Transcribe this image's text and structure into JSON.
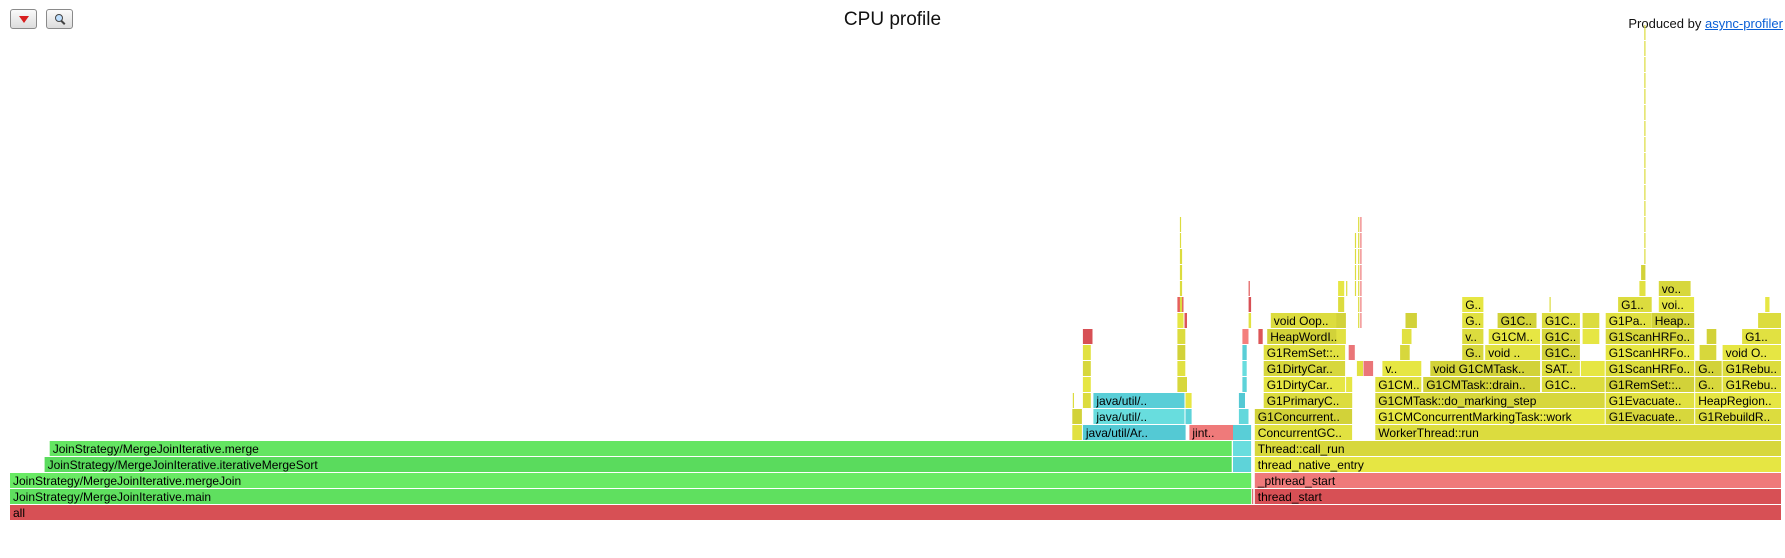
{
  "header": {
    "title": "CPU profile",
    "produced_prefix": "Produced by ",
    "produced_link": "async-profiler"
  },
  "toolbar": {
    "reverse_icon": "triangle-down-icon",
    "search_icon": "magnifier-icon"
  },
  "palette": {
    "red": "#e15a5a",
    "green": "#5fe05f",
    "yellow": "#dcdc3e",
    "cyan": "#5ed3d9",
    "pink": "#ef7a7a"
  },
  "frames": [
    {
      "name": "all",
      "label": "all",
      "depth": 0,
      "x": 0.0,
      "w": 1.0,
      "c": "red"
    },
    {
      "name": "JoinStrategy/MergeJoinIterative.main",
      "label": "JoinStrategy/MergeJoinIterative.main",
      "depth": 1,
      "x": 0.0,
      "w": 0.701,
      "c": "green"
    },
    {
      "name": "JoinStrategy/MergeJoinIterative.mergeJoin",
      "label": "JoinStrategy/MergeJoinIterative.mergeJoin",
      "depth": 2,
      "x": 0.0,
      "w": 0.701,
      "c": "green"
    },
    {
      "name": "JoinStrategy/MergeJoinIterative.iterativeMergeSort",
      "label": "JoinStrategy/MergeJoinIterative.iterativeMergeSort",
      "depth": 3,
      "x": 0.0195,
      "w": 0.6705,
      "c": "green"
    },
    {
      "name": "JoinStrategy/MergeJoinIterative.merge",
      "label": "JoinStrategy/MergeJoinIterative.merge",
      "depth": 4,
      "x": 0.0224,
      "w": 0.6676,
      "c": "green"
    },
    {
      "name": "java/util/Ar..",
      "label": "java/util/Ar..",
      "depth": 5,
      "x": 0.6055,
      "w": 0.0585,
      "c": "cyan"
    },
    {
      "name": "jint..",
      "label": "jint..",
      "depth": 5,
      "x": 0.6656,
      "w": 0.0264,
      "c": "pink"
    },
    {
      "name": "java/util/..",
      "label": "java/util/..",
      "depth": 6,
      "x": 0.6114,
      "w": 0.052,
      "c": "cyan"
    },
    {
      "name": "java/util/..",
      "label": "java/util/..",
      "depth": 7,
      "x": 0.6114,
      "w": 0.052,
      "c": "cyan"
    },
    {
      "name": "",
      "label": "",
      "depth": 5,
      "x": 0.5995,
      "w": 0.006,
      "c": "yellow"
    },
    {
      "name": "",
      "label": "",
      "depth": 6,
      "x": 0.5995,
      "w": 0.006,
      "c": "yellow"
    },
    {
      "name": "",
      "label": "",
      "depth": 7,
      "x": 0.6055,
      "w": 0.005,
      "c": "yellow"
    },
    {
      "name": "",
      "label": "",
      "depth": 8,
      "x": 0.6055,
      "w": 0.005,
      "c": "yellow"
    },
    {
      "name": "",
      "label": "",
      "depth": 9,
      "x": 0.6055,
      "w": 0.005,
      "c": "yellow"
    },
    {
      "name": "",
      "label": "",
      "depth": 10,
      "x": 0.6055,
      "w": 0.005,
      "c": "yellow"
    },
    {
      "name": "",
      "label": "",
      "depth": 11,
      "x": 0.6055,
      "w": 0.006,
      "c": "red"
    },
    {
      "name": "",
      "label": "",
      "depth": 6,
      "x": 0.6634,
      "w": 0.004,
      "c": "cyan"
    },
    {
      "name": "",
      "label": "",
      "depth": 7,
      "x": 0.6634,
      "w": 0.004,
      "c": "yellow"
    },
    {
      "name": "",
      "label": "",
      "depth": 8,
      "x": 0.6588,
      "w": 0.006,
      "c": "yellow"
    },
    {
      "name": "",
      "label": "",
      "depth": 9,
      "x": 0.6588,
      "w": 0.005,
      "c": "yellow"
    },
    {
      "name": "",
      "label": "",
      "depth": 10,
      "x": 0.6588,
      "w": 0.005,
      "c": "yellow"
    },
    {
      "name": "",
      "label": "",
      "depth": 11,
      "x": 0.6588,
      "w": 0.005,
      "c": "yellow"
    },
    {
      "name": "",
      "label": "",
      "depth": 12,
      "x": 0.6588,
      "w": 0.004,
      "c": "yellow"
    },
    {
      "name": "",
      "label": "",
      "depth": 12,
      "x": 0.6628,
      "w": 0.002,
      "c": "red"
    },
    {
      "name": "",
      "label": "",
      "depth": 13,
      "x": 0.6588,
      "w": 0.004,
      "c": "red"
    },
    {
      "name": "",
      "label": "",
      "depth": 1,
      "x": 0.701,
      "w": 0.0,
      "c": "red"
    },
    {
      "name": "",
      "label": "",
      "depth": 3,
      "x": 0.6902,
      "w": 0.0108,
      "c": "cyan"
    },
    {
      "name": "",
      "label": "",
      "depth": 4,
      "x": 0.6902,
      "w": 0.0108,
      "c": "cyan"
    },
    {
      "name": "",
      "label": "",
      "depth": 5,
      "x": 0.6902,
      "w": 0.0108,
      "c": "cyan"
    },
    {
      "name": "",
      "label": "",
      "depth": 6,
      "x": 0.6935,
      "w": 0.006,
      "c": "cyan"
    },
    {
      "name": "",
      "label": "",
      "depth": 7,
      "x": 0.6935,
      "w": 0.004,
      "c": "cyan"
    },
    {
      "name": "",
      "label": "",
      "depth": 8,
      "x": 0.6955,
      "w": 0.003,
      "c": "cyan"
    },
    {
      "name": "",
      "label": "",
      "depth": 9,
      "x": 0.6955,
      "w": 0.003,
      "c": "cyan"
    },
    {
      "name": "",
      "label": "",
      "depth": 10,
      "x": 0.6955,
      "w": 0.003,
      "c": "cyan"
    },
    {
      "name": "",
      "label": "",
      "depth": 11,
      "x": 0.6955,
      "w": 0.004,
      "c": "pink"
    },
    {
      "name": "thread_start",
      "label": "thread_start",
      "depth": 1,
      "x": 0.7025,
      "w": 0.2975,
      "c": "red"
    },
    {
      "name": "_pthread_start",
      "label": "_pthread_start",
      "depth": 2,
      "x": 0.7025,
      "w": 0.2975,
      "c": "pink"
    },
    {
      "name": "thread_native_entry",
      "label": "thread_native_entry",
      "depth": 3,
      "x": 0.7025,
      "w": 0.2975,
      "c": "yellow"
    },
    {
      "name": "Thread::call_run",
      "label": "Thread::call_run",
      "depth": 4,
      "x": 0.7025,
      "w": 0.2975,
      "c": "yellow"
    },
    {
      "name": "ConcurrentGC..",
      "label": "ConcurrentGC..",
      "depth": 5,
      "x": 0.7025,
      "w": 0.0555,
      "c": "yellow"
    },
    {
      "name": "G1Concurrent..",
      "label": "G1Concurrent..",
      "depth": 6,
      "x": 0.7025,
      "w": 0.0555,
      "c": "yellow"
    },
    {
      "name": "G1PrimaryC..",
      "label": "G1PrimaryC..",
      "depth": 7,
      "x": 0.7075,
      "w": 0.0505,
      "c": "yellow"
    },
    {
      "name": "G1DirtyCar..",
      "label": "G1DirtyCar..",
      "depth": 8,
      "x": 0.7075,
      "w": 0.0465,
      "c": "yellow"
    },
    {
      "name": "G1DirtyCar..",
      "label": "G1DirtyCar..",
      "depth": 9,
      "x": 0.7075,
      "w": 0.0465,
      "c": "yellow"
    },
    {
      "name": "G1RemSet::..",
      "label": "G1RemSet::..",
      "depth": 10,
      "x": 0.7075,
      "w": 0.0465,
      "c": "yellow"
    },
    {
      "name": "HeapWordI..",
      "label": "HeapWordI..",
      "depth": 11,
      "x": 0.7095,
      "w": 0.0445,
      "c": "yellow"
    },
    {
      "name": "void Oop..",
      "label": "void Oop..",
      "depth": 12,
      "x": 0.7115,
      "w": 0.0425,
      "c": "yellow"
    },
    {
      "name": "",
      "label": "",
      "depth": 8,
      "x": 0.754,
      "w": 0.004,
      "c": "yellow"
    },
    {
      "name": "",
      "label": "",
      "depth": 10,
      "x": 0.7555,
      "w": 0.004,
      "c": "pink"
    },
    {
      "name": "",
      "label": "",
      "depth": 11,
      "x": 0.7485,
      "w": 0.006,
      "c": "yellow"
    },
    {
      "name": "",
      "label": "",
      "depth": 12,
      "x": 0.7485,
      "w": 0.006,
      "c": "yellow"
    },
    {
      "name": "",
      "label": "",
      "depth": 13,
      "x": 0.7495,
      "w": 0.004,
      "c": "yellow"
    },
    {
      "name": "",
      "label": "",
      "depth": 14,
      "x": 0.7495,
      "w": 0.004,
      "c": "yellow"
    },
    {
      "name": "",
      "label": "",
      "depth": 11,
      "x": 0.7045,
      "w": 0.003,
      "c": "red"
    },
    {
      "name": "",
      "label": "",
      "depth": 12,
      "x": 0.699,
      "w": 0.002,
      "c": "yellow"
    },
    {
      "name": "",
      "label": "",
      "depth": 13,
      "x": 0.699,
      "w": 0.002,
      "c": "red"
    },
    {
      "name": "WorkerThread::run",
      "label": "WorkerThread::run",
      "depth": 5,
      "x": 0.7705,
      "w": 0.2295,
      "c": "yellow"
    },
    {
      "name": "G1CMConcurrentMarkingTask::work",
      "label": "G1CMConcurrentMarkingTask::work",
      "depth": 6,
      "x": 0.7705,
      "w": 0.13,
      "c": "yellow"
    },
    {
      "name": "G1CMTask::do_marking_step",
      "label": "G1CMTask::do_marking_step",
      "depth": 7,
      "x": 0.7705,
      "w": 0.13,
      "c": "yellow"
    },
    {
      "name": "G1CM..",
      "label": "G1CM..",
      "depth": 8,
      "x": 0.7705,
      "w": 0.0265,
      "c": "yellow"
    },
    {
      "name": "G1CMTask::drain..",
      "label": "G1CMTask::drain..",
      "depth": 8,
      "x": 0.7975,
      "w": 0.0665,
      "c": "yellow"
    },
    {
      "name": "G1C..",
      "label": "G1C..",
      "depth": 8,
      "x": 0.8645,
      "w": 0.036,
      "c": "yellow"
    },
    {
      "name": "v..",
      "label": "v..",
      "depth": 9,
      "x": 0.7745,
      "w": 0.0225,
      "c": "yellow"
    },
    {
      "name": "",
      "label": "",
      "depth": 9,
      "x": 0.7638,
      "w": 0.006,
      "c": "pink"
    },
    {
      "name": "",
      "label": "",
      "depth": 9,
      "x": 0.7601,
      "w": 0.004,
      "c": "yellow"
    },
    {
      "name": "void G1CMTask..",
      "label": "void G1CMTask..",
      "depth": 9,
      "x": 0.8015,
      "w": 0.0625,
      "c": "yellow"
    },
    {
      "name": "SAT..",
      "label": "SAT..",
      "depth": 9,
      "x": 0.8645,
      "w": 0.022,
      "c": "yellow"
    },
    {
      "name": "",
      "label": "",
      "depth": 9,
      "x": 0.8865,
      "w": 0.014,
      "c": "yellow"
    },
    {
      "name": "G..",
      "label": "G..",
      "depth": 10,
      "x": 0.8195,
      "w": 0.0125,
      "c": "yellow"
    },
    {
      "name": "void ..",
      "label": "void ..",
      "depth": 10,
      "x": 0.8325,
      "w": 0.0315,
      "c": "yellow"
    },
    {
      "name": "G1C..",
      "label": "G1C..",
      "depth": 10,
      "x": 0.8645,
      "w": 0.022,
      "c": "yellow"
    },
    {
      "name": "v..",
      "label": "v..",
      "depth": 11,
      "x": 0.8195,
      "w": 0.0125,
      "c": "yellow"
    },
    {
      "name": "G1CM..",
      "label": "G1CM..",
      "depth": 11,
      "x": 0.8345,
      "w": 0.0295,
      "c": "yellow"
    },
    {
      "name": "G1C..",
      "label": "G1C..",
      "depth": 11,
      "x": 0.8645,
      "w": 0.022,
      "c": "yellow"
    },
    {
      "name": "G..",
      "label": "G..",
      "depth": 12,
      "x": 0.8195,
      "w": 0.0125,
      "c": "yellow"
    },
    {
      "name": "G1C..",
      "label": "G1C..",
      "depth": 12,
      "x": 0.8395,
      "w": 0.0225,
      "c": "yellow"
    },
    {
      "name": "G1C..",
      "label": "G1C..",
      "depth": 12,
      "x": 0.8645,
      "w": 0.022,
      "c": "yellow"
    },
    {
      "name": "G..",
      "label": "G..",
      "depth": 13,
      "x": 0.8195,
      "w": 0.0125,
      "c": "yellow"
    },
    {
      "name": "",
      "label": "",
      "depth": 10,
      "x": 0.7845,
      "w": 0.006,
      "c": "yellow"
    },
    {
      "name": "",
      "label": "",
      "depth": 11,
      "x": 0.7855,
      "w": 0.006,
      "c": "yellow"
    },
    {
      "name": "",
      "label": "",
      "depth": 12,
      "x": 0.7875,
      "w": 0.007,
      "c": "yellow"
    },
    {
      "name": "",
      "label": "",
      "depth": 12,
      "x": 0.8875,
      "w": 0.01,
      "c": "yellow"
    },
    {
      "name": "",
      "label": "",
      "depth": 11,
      "x": 0.8875,
      "w": 0.01,
      "c": "yellow"
    },
    {
      "name": "G1Evacuate..",
      "label": "G1Evacuate..",
      "depth": 6,
      "x": 0.9005,
      "w": 0.0505,
      "c": "yellow"
    },
    {
      "name": "G1Evacuate..",
      "label": "G1Evacuate..",
      "depth": 7,
      "x": 0.9005,
      "w": 0.0505,
      "c": "yellow"
    },
    {
      "name": "G1RemSet::..",
      "label": "G1RemSet::..",
      "depth": 8,
      "x": 0.9005,
      "w": 0.0505,
      "c": "yellow"
    },
    {
      "name": "G1ScanHRFo..",
      "label": "G1ScanHRFo..",
      "depth": 9,
      "x": 0.9005,
      "w": 0.0505,
      "c": "yellow"
    },
    {
      "name": "G1ScanHRFo..",
      "label": "G1ScanHRFo..",
      "depth": 10,
      "x": 0.9005,
      "w": 0.0505,
      "c": "yellow"
    },
    {
      "name": "G1ScanHRFo..",
      "label": "G1ScanHRFo..",
      "depth": 11,
      "x": 0.9005,
      "w": 0.0505,
      "c": "yellow"
    },
    {
      "name": "G1Pa..",
      "label": "G1Pa..",
      "depth": 12,
      "x": 0.9005,
      "w": 0.0265,
      "c": "yellow"
    },
    {
      "name": "Heap..",
      "label": "Heap..",
      "depth": 12,
      "x": 0.9265,
      "w": 0.0245,
      "c": "yellow"
    },
    {
      "name": "G1..",
      "label": "G1..",
      "depth": 13,
      "x": 0.9075,
      "w": 0.0195,
      "c": "yellow"
    },
    {
      "name": "voi..",
      "label": "voi..",
      "depth": 13,
      "x": 0.9305,
      "w": 0.0205,
      "c": "yellow"
    },
    {
      "name": "vo..",
      "label": "vo..",
      "depth": 14,
      "x": 0.9305,
      "w": 0.0185,
      "c": "yellow"
    },
    {
      "name": "",
      "label": "",
      "depth": 14,
      "x": 0.9195,
      "w": 0.004,
      "c": "yellow"
    },
    {
      "name": "",
      "label": "",
      "depth": 15,
      "x": 0.9205,
      "w": 0.003,
      "c": "yellow"
    },
    {
      "name": "G1RebuildR..",
      "label": "G1RebuildR..",
      "depth": 6,
      "x": 0.951,
      "w": 0.049,
      "c": "yellow"
    },
    {
      "name": "HeapRegion..",
      "label": "HeapRegion..",
      "depth": 7,
      "x": 0.951,
      "w": 0.049,
      "c": "yellow"
    },
    {
      "name": "G..",
      "label": "G..",
      "depth": 8,
      "x": 0.951,
      "w": 0.0155,
      "c": "yellow"
    },
    {
      "name": "G1Rebu..",
      "label": "G1Rebu..",
      "depth": 8,
      "x": 0.9665,
      "w": 0.0335,
      "c": "yellow"
    },
    {
      "name": "G..",
      "label": "G..",
      "depth": 9,
      "x": 0.951,
      "w": 0.0155,
      "c": "yellow"
    },
    {
      "name": "G1Rebu..",
      "label": "G1Rebu..",
      "depth": 9,
      "x": 0.9665,
      "w": 0.0335,
      "c": "yellow"
    },
    {
      "name": "void O..",
      "label": "void O..",
      "depth": 10,
      "x": 0.9665,
      "w": 0.0335,
      "c": "yellow"
    },
    {
      "name": "",
      "label": "",
      "depth": 10,
      "x": 0.9535,
      "w": 0.01,
      "c": "yellow"
    },
    {
      "name": "G1..",
      "label": "G1..",
      "depth": 11,
      "x": 0.9775,
      "w": 0.0225,
      "c": "yellow"
    },
    {
      "name": "",
      "label": "",
      "depth": 11,
      "x": 0.9575,
      "w": 0.006,
      "c": "yellow"
    },
    {
      "name": "",
      "label": "",
      "depth": 12,
      "x": 0.9865,
      "w": 0.0135,
      "c": "yellow"
    },
    {
      "name": "",
      "label": "",
      "depth": 13,
      "x": 0.9905,
      "w": 0.003,
      "c": "yellow"
    }
  ],
  "spikes": [
    {
      "x": 0.5998,
      "depth": 7,
      "h": 1,
      "c": "yellow"
    },
    {
      "x": 0.6602,
      "depth": 13,
      "h": 6,
      "c": "yellow"
    },
    {
      "x": 0.6608,
      "depth": 13,
      "h": 4,
      "c": "yellow"
    },
    {
      "x": 0.699,
      "depth": 14,
      "h": 1,
      "c": "red"
    },
    {
      "x": 0.759,
      "depth": 14,
      "h": 4,
      "c": "yellow"
    },
    {
      "x": 0.7608,
      "depth": 12,
      "h": 7,
      "c": "yellow"
    },
    {
      "x": 0.762,
      "depth": 12,
      "h": 7,
      "c": "pink"
    },
    {
      "x": 0.754,
      "depth": 14,
      "h": 1,
      "c": "yellow"
    },
    {
      "x": 0.8688,
      "depth": 13,
      "h": 1,
      "c": "yellow"
    },
    {
      "x": 0.9223,
      "depth": 16,
      "h": 15,
      "c": "yellow"
    }
  ]
}
